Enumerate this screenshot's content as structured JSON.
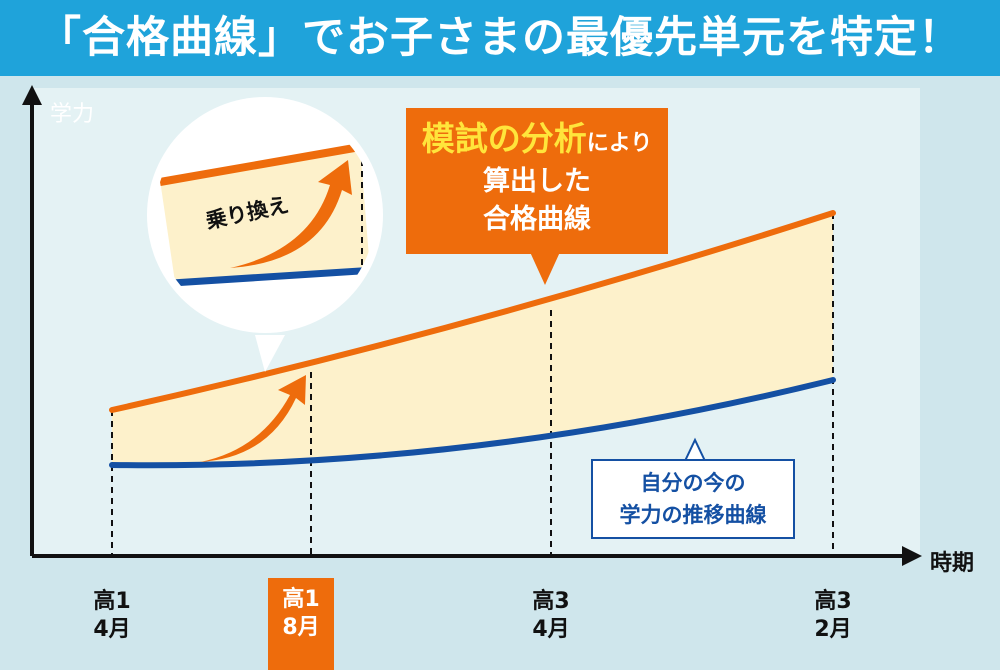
{
  "banner": {
    "title": "「合格曲線」でお子さまの最優先単元を特定！"
  },
  "axes": {
    "y_label": "学力",
    "x_label": "時期"
  },
  "x_ticks": [
    {
      "line1": "高1",
      "line2": "4月",
      "highlight": false
    },
    {
      "line1": "高1",
      "line2": "8月",
      "highlight": true
    },
    {
      "line1": "高3",
      "line2": "4月",
      "highlight": false
    },
    {
      "line1": "高3",
      "line2": "2月",
      "highlight": false
    }
  ],
  "callout_orange": {
    "emph": "模試の分析",
    "rest": "により",
    "line2": "算出した",
    "line3": "合格曲線"
  },
  "callout_blue": {
    "line1": "自分の今の",
    "line2": "学力の推移曲線"
  },
  "magnifier": {
    "label": "乗り換え"
  },
  "colors": {
    "banner": "#1fa3da",
    "orange": "#ee6c0c",
    "blue": "#1450a3",
    "fill": "#fdf1cb",
    "accent_yellow": "#ffe53b"
  }
}
